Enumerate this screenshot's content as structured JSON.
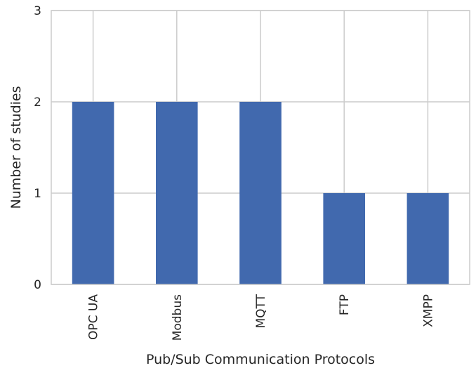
{
  "chart_data": {
    "type": "bar",
    "categories": [
      "OPC UA",
      "Modbus",
      "MQTT",
      "FTP",
      "XMPP"
    ],
    "values": [
      2,
      2,
      2,
      1,
      1
    ],
    "title": "",
    "xlabel": "Pub/Sub Communication Protocols",
    "ylabel": "Number of studies",
    "ylim": [
      0,
      3
    ],
    "yticks": [
      0,
      1,
      2,
      3
    ],
    "grid": true,
    "bar_color": "#4169ae",
    "grid_color": "#cccccc",
    "spine_color": "#cccccc",
    "text_color": "#262626"
  }
}
